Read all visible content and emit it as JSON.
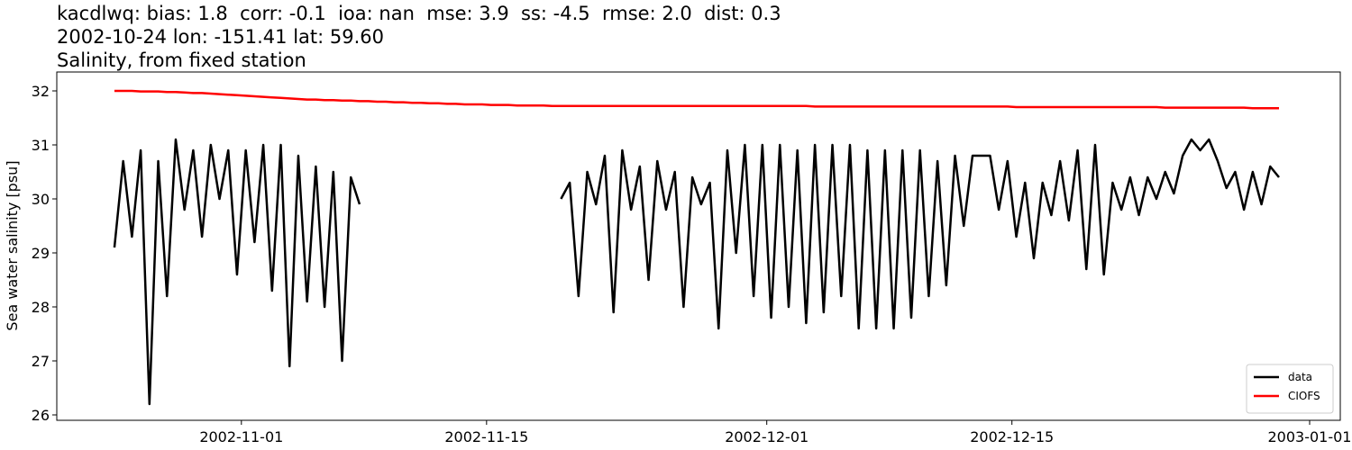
{
  "chart_data": {
    "type": "line",
    "title_lines": [
      "kacdlwq: bias: 1.8  corr: -0.1  ioa: nan  mse: 3.9  ss: -4.5  rmse: 2.0  dist: 0.3",
      "2002-10-24 lon: -151.41 lat: 59.60",
      "Salinity, from fixed station"
    ],
    "y_label": "Sea water salinity [psu]",
    "x": [
      "2002-10-24 18:00",
      "2002-10-25 06:00",
      "2002-10-25 18:00",
      "2002-10-26 06:00",
      "2002-10-26 18:00",
      "2002-10-27 06:00",
      "2002-10-27 18:00",
      "2002-10-28 06:00",
      "2002-10-28 18:00",
      "2002-10-29 06:00",
      "2002-10-29 18:00",
      "2002-10-30 06:00",
      "2002-10-30 18:00",
      "2002-10-31 06:00",
      "2002-10-31 18:00",
      "2002-11-01 06:00",
      "2002-11-01 18:00",
      "2002-11-02 06:00",
      "2002-11-02 18:00",
      "2002-11-03 06:00",
      "2002-11-03 18:00",
      "2002-11-04 06:00",
      "2002-11-04 18:00",
      "2002-11-05 06:00",
      "2002-11-05 18:00",
      "2002-11-06 06:00",
      "2002-11-06 18:00",
      "2002-11-07 06:00",
      "2002-11-07 18:00",
      "2002-11-08 06:00",
      "2002-11-08 18:00",
      "2002-11-09 06:00",
      "2002-11-09 18:00",
      "2002-11-10 06:00",
      "2002-11-10 18:00",
      "2002-11-11 06:00",
      "2002-11-11 18:00",
      "2002-11-12 06:00",
      "2002-11-12 18:00",
      "2002-11-13 06:00",
      "2002-11-13 18:00",
      "2002-11-14 06:00",
      "2002-11-14 18:00",
      "2002-11-15 06:00",
      "2002-11-15 18:00",
      "2002-11-16 06:00",
      "2002-11-16 18:00",
      "2002-11-17 06:00",
      "2002-11-17 18:00",
      "2002-11-18 06:00",
      "2002-11-18 18:00",
      "2002-11-19 06:00",
      "2002-11-19 18:00",
      "2002-11-20 06:00",
      "2002-11-20 18:00",
      "2002-11-21 06:00",
      "2002-11-21 18:00",
      "2002-11-22 06:00",
      "2002-11-22 18:00",
      "2002-11-23 06:00",
      "2002-11-23 18:00",
      "2002-11-24 06:00",
      "2002-11-24 18:00",
      "2002-11-25 06:00",
      "2002-11-25 18:00",
      "2002-11-26 06:00",
      "2002-11-26 18:00",
      "2002-11-27 06:00",
      "2002-11-27 18:00",
      "2002-11-28 06:00",
      "2002-11-28 18:00",
      "2002-11-29 06:00",
      "2002-11-29 18:00",
      "2002-11-30 06:00",
      "2002-11-30 18:00",
      "2002-12-01 06:00",
      "2002-12-01 18:00",
      "2002-12-02 06:00",
      "2002-12-02 18:00",
      "2002-12-03 06:00",
      "2002-12-03 18:00",
      "2002-12-04 06:00",
      "2002-12-04 18:00",
      "2002-12-05 06:00",
      "2002-12-05 18:00",
      "2002-12-06 06:00",
      "2002-12-06 18:00",
      "2002-12-07 06:00",
      "2002-12-07 18:00",
      "2002-12-08 06:00",
      "2002-12-08 18:00",
      "2002-12-09 06:00",
      "2002-12-09 18:00",
      "2002-12-10 06:00",
      "2002-12-10 18:00",
      "2002-12-11 06:00",
      "2002-12-11 18:00",
      "2002-12-12 06:00",
      "2002-12-12 18:00",
      "2002-12-13 06:00",
      "2002-12-13 18:00",
      "2002-12-14 06:00",
      "2002-12-14 18:00",
      "2002-12-15 06:00",
      "2002-12-15 18:00",
      "2002-12-16 06:00",
      "2002-12-16 18:00",
      "2002-12-17 06:00",
      "2002-12-17 18:00",
      "2002-12-18 06:00",
      "2002-12-18 18:00",
      "2002-12-19 06:00",
      "2002-12-19 18:00",
      "2002-12-20 06:00",
      "2002-12-20 18:00",
      "2002-12-21 06:00",
      "2002-12-21 18:00",
      "2002-12-22 06:00",
      "2002-12-22 18:00",
      "2002-12-23 06:00",
      "2002-12-23 18:00",
      "2002-12-24 06:00",
      "2002-12-24 18:00",
      "2002-12-25 06:00",
      "2002-12-25 18:00",
      "2002-12-26 06:00",
      "2002-12-26 18:00",
      "2002-12-27 06:00",
      "2002-12-27 18:00",
      "2002-12-28 06:00",
      "2002-12-28 18:00",
      "2002-12-29 06:00",
      "2002-12-29 18:00",
      "2002-12-30 06:00"
    ],
    "series": [
      {
        "name": "data",
        "color": "#000000",
        "values": [
          29.1,
          30.7,
          29.3,
          30.9,
          26.2,
          30.7,
          28.2,
          31.1,
          29.8,
          30.9,
          29.3,
          31.0,
          30.0,
          30.9,
          28.6,
          30.9,
          29.2,
          31.0,
          28.3,
          31.0,
          26.9,
          30.8,
          28.1,
          30.6,
          28.0,
          30.5,
          27.0,
          30.4,
          29.9,
          null,
          null,
          null,
          null,
          null,
          null,
          null,
          null,
          null,
          null,
          null,
          null,
          null,
          null,
          null,
          null,
          null,
          null,
          null,
          null,
          null,
          null,
          30.0,
          30.3,
          28.2,
          30.5,
          29.9,
          30.8,
          27.9,
          30.9,
          29.8,
          30.6,
          28.5,
          30.7,
          29.8,
          30.5,
          28.0,
          30.4,
          29.9,
          30.3,
          27.6,
          30.9,
          29.0,
          31.0,
          28.2,
          31.0,
          27.8,
          31.0,
          28.0,
          30.9,
          27.7,
          31.0,
          27.9,
          31.0,
          28.2,
          31.0,
          27.6,
          30.9,
          27.6,
          30.9,
          27.6,
          30.9,
          27.8,
          30.9,
          28.2,
          30.7,
          28.4,
          30.8,
          29.5,
          30.8,
          30.8,
          30.8,
          29.8,
          30.7,
          29.3,
          30.3,
          28.9,
          30.3,
          29.7,
          30.7,
          29.6,
          30.9,
          28.7,
          31.0,
          28.6,
          30.3,
          29.8,
          30.4,
          29.7,
          30.4,
          30.0,
          30.5,
          30.1,
          30.8,
          31.1,
          30.9,
          31.1,
          30.7,
          30.2,
          30.5,
          29.8,
          30.5,
          29.9,
          30.6,
          30.4
        ]
      },
      {
        "name": "CIOFS",
        "color": "#ff0000",
        "values": [
          32.0,
          32.0,
          32.0,
          31.99,
          31.99,
          31.99,
          31.98,
          31.98,
          31.97,
          31.96,
          31.96,
          31.95,
          31.94,
          31.93,
          31.92,
          31.91,
          31.9,
          31.89,
          31.88,
          31.87,
          31.86,
          31.85,
          31.84,
          31.84,
          31.83,
          31.83,
          31.82,
          31.82,
          31.81,
          31.81,
          31.8,
          31.8,
          31.79,
          31.79,
          31.78,
          31.78,
          31.77,
          31.77,
          31.76,
          31.76,
          31.75,
          31.75,
          31.75,
          31.74,
          31.74,
          31.74,
          31.73,
          31.73,
          31.73,
          31.73,
          31.72,
          31.72,
          31.72,
          31.72,
          31.72,
          31.72,
          31.72,
          31.72,
          31.72,
          31.72,
          31.72,
          31.72,
          31.72,
          31.72,
          31.72,
          31.72,
          31.72,
          31.72,
          31.72,
          31.72,
          31.72,
          31.72,
          31.72,
          31.72,
          31.72,
          31.72,
          31.72,
          31.72,
          31.72,
          31.72,
          31.71,
          31.71,
          31.71,
          31.71,
          31.71,
          31.71,
          31.71,
          31.71,
          31.71,
          31.71,
          31.71,
          31.71,
          31.71,
          31.71,
          31.71,
          31.71,
          31.71,
          31.71,
          31.71,
          31.71,
          31.71,
          31.71,
          31.71,
          31.7,
          31.7,
          31.7,
          31.7,
          31.7,
          31.7,
          31.7,
          31.7,
          31.7,
          31.7,
          31.7,
          31.7,
          31.7,
          31.7,
          31.7,
          31.7,
          31.7,
          31.69,
          31.69,
          31.69,
          31.69,
          31.69,
          31.69,
          31.69,
          31.69,
          31.69,
          31.69,
          31.68,
          31.68,
          31.68,
          31.68
        ]
      }
    ],
    "xlim": [
      "2002-10-21 11:00",
      "2003-01-02 18:00"
    ],
    "xticks": [
      "2002-11-01",
      "2002-11-15",
      "2002-12-01",
      "2002-12-15",
      "2003-01-01"
    ],
    "ylim": [
      25.9,
      32.35
    ],
    "yticks": [
      26,
      27,
      28,
      29,
      30,
      31,
      32
    ],
    "legend": "lower right"
  }
}
